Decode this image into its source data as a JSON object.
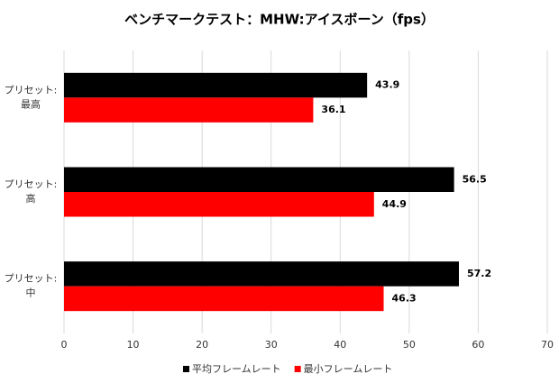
{
  "chart_data": {
    "type": "hbar",
    "title": "ベンチマークテスト：MHW:アイスボーン（fps）",
    "categories": [
      "プリセット:\n最高",
      "プリセット:\n高",
      "プリセット:\n中"
    ],
    "series": [
      {
        "name": "平均フレームレート",
        "color": "#000000",
        "values": [
          43.9,
          56.5,
          57.2
        ]
      },
      {
        "name": "最小フレームレート",
        "color": "#ff0000",
        "values": [
          36.1,
          44.9,
          46.3
        ]
      }
    ],
    "xlim": [
      0,
      70
    ],
    "xticks": [
      0,
      10,
      20,
      30,
      40,
      50,
      60,
      70
    ],
    "grid": true,
    "legend": "bottom"
  }
}
